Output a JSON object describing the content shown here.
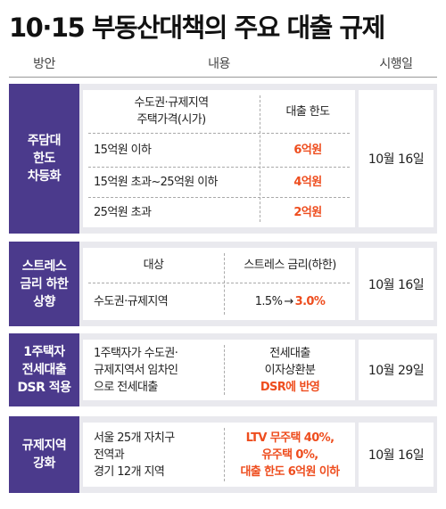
{
  "title": "10·15 부동산대책의 주요 대출 규제",
  "headers": {
    "plan": "방안",
    "content": "내용",
    "date": "시행일"
  },
  "rows": [
    {
      "label": "주담대\n한도\n차등화",
      "date": "10월 16일",
      "head_left": "수도권·규제지역\n주택가격(시가)",
      "head_right": "대출 한도",
      "items": [
        {
          "left": "15억원 이하",
          "right": "6억원"
        },
        {
          "left": "15억원 초과~25억원 이하",
          "right": "4억원"
        },
        {
          "left": "25억원 초과",
          "right": "2억원"
        }
      ]
    },
    {
      "label": "스트레스\n금리 하한\n상향",
      "date": "10월 16일",
      "head_left": "대상",
      "head_right": "스트레스 금리(하한)",
      "item_left": "수도권·규제지역",
      "rate_from": "1.5%",
      "rate_arrow": "→",
      "rate_to": "3.0%"
    },
    {
      "label": "1주택자\n전세대출\nDSR 적용",
      "date": "10월 29일",
      "left": "1주택자가 수도권·\n규제지역서 임차인\n으로 전세대출",
      "right_plain": "전세대출\n이자상환분",
      "right_red": "DSR에 반영"
    },
    {
      "label": "규제지역\n강화",
      "date": "10월 16일",
      "left": "서울 25개 자치구\n전역과\n경기 12개 지역",
      "right_red": "LTV 무주택 40%,\n유주택 0%,\n대출 한도 6억원 이하"
    }
  ]
}
